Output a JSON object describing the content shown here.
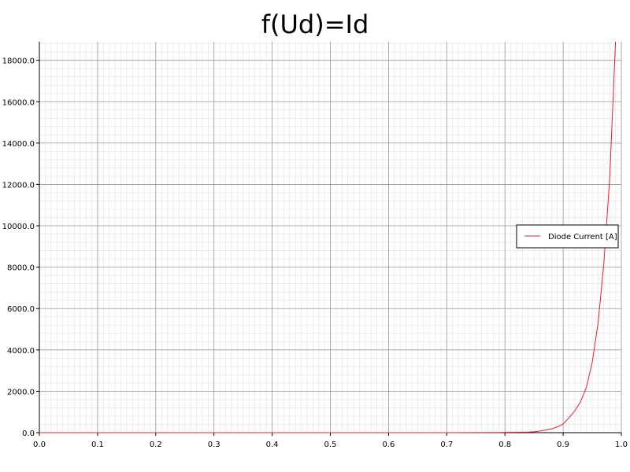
{
  "chart_data": {
    "type": "line",
    "title": "f(Ud)=Id",
    "xlabel": "",
    "ylabel": "",
    "xlim": [
      0.0,
      1.0
    ],
    "ylim": [
      0,
      18900
    ],
    "x_ticks": [
      0.0,
      0.1,
      0.2,
      0.3,
      0.4,
      0.5,
      0.6,
      0.7,
      0.8,
      0.9,
      1.0
    ],
    "x_tick_labels": [
      "0.0",
      "0.1",
      "0.2",
      "0.3",
      "0.4",
      "0.5",
      "0.6",
      "0.7",
      "0.8",
      "0.9",
      "1.0"
    ],
    "y_ticks": [
      0,
      2000,
      4000,
      6000,
      8000,
      10000,
      12000,
      14000,
      16000,
      18000
    ],
    "y_tick_labels": [
      "0.0",
      "2000.0",
      "4000.0",
      "6000.0",
      "8000.0",
      "10000.0",
      "12000.0",
      "14000.0",
      "16000.0",
      "18000.0"
    ],
    "grid": true,
    "minor_grid": true,
    "legend_position": "right",
    "series": [
      {
        "name": "Diode Current [A]",
        "color": "#e8202a",
        "x": [
          0.0,
          0.1,
          0.2,
          0.3,
          0.4,
          0.5,
          0.6,
          0.7,
          0.75,
          0.8,
          0.82,
          0.84,
          0.85,
          0.86,
          0.87,
          0.88,
          0.89,
          0.9,
          0.91,
          0.92,
          0.93,
          0.94,
          0.95,
          0.96,
          0.97,
          0.98,
          0.99
        ],
        "y": [
          0,
          0,
          0,
          0,
          0,
          0,
          0,
          2,
          5,
          12,
          20,
          30,
          45,
          75,
          130,
          180,
          280,
          420,
          720,
          1050,
          1500,
          2200,
          3400,
          5300,
          8200,
          12300,
          18900
        ]
      }
    ]
  }
}
